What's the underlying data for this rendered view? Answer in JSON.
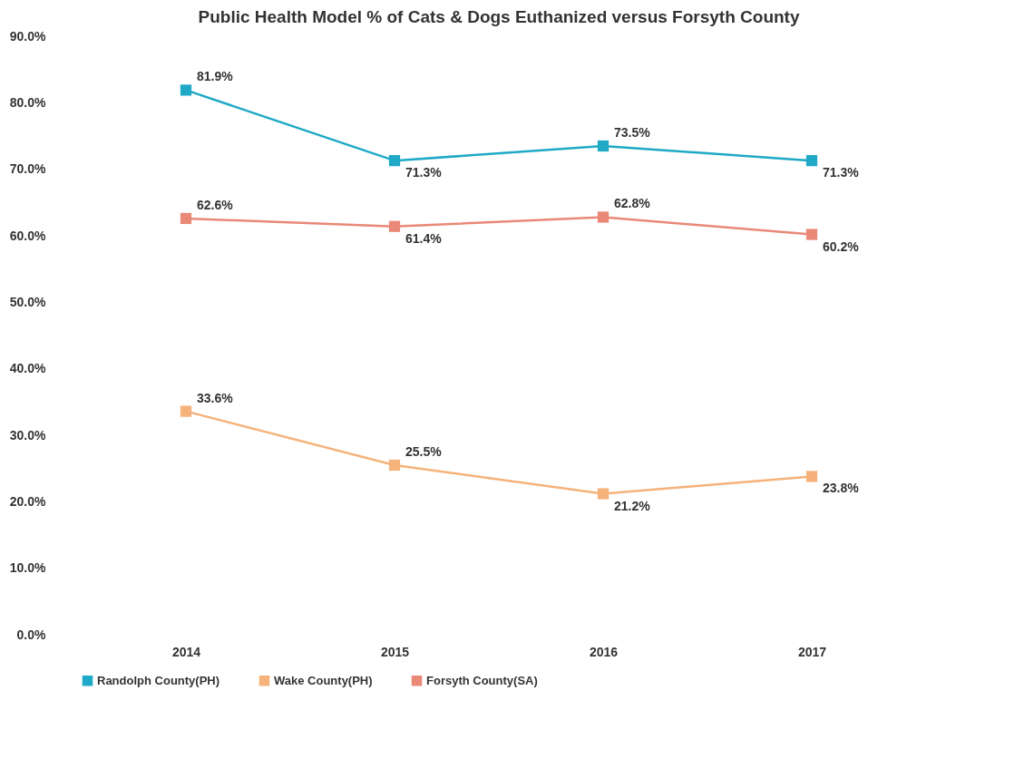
{
  "chart_data": {
    "type": "line",
    "title": "Public Health Model % of Cats & Dogs Euthanized versus Forsyth County",
    "categories": [
      "2014",
      "2015",
      "2016",
      "2017"
    ],
    "series": [
      {
        "name": "Randolph County(PH)",
        "color": "#1fa9c6",
        "values": [
          81.9,
          71.3,
          73.5,
          71.3
        ],
        "value_labels": [
          "81.9%",
          "71.3%",
          "73.5%",
          "71.3%"
        ]
      },
      {
        "name": "Wake County(PH)",
        "color": "#f5b27a",
        "values": [
          33.6,
          25.5,
          21.2,
          23.8
        ],
        "value_labels": [
          "33.6%",
          "25.5%",
          "21.2%",
          "23.8%"
        ]
      },
      {
        "name": "Forsyth County(SA)",
        "color": "#ea8878",
        "values": [
          62.6,
          61.4,
          62.8,
          60.2
        ],
        "value_labels": [
          "62.6%",
          "61.4%",
          "62.8%",
          "60.2%"
        ]
      }
    ],
    "ylim": [
      0,
      90
    ],
    "yticks": [
      {
        "value": 0,
        "label": "0.0%"
      },
      {
        "value": 10,
        "label": "10.0%"
      },
      {
        "value": 20,
        "label": "20.0%"
      },
      {
        "value": 30,
        "label": "30.0%"
      },
      {
        "value": 40,
        "label": "40.0%"
      },
      {
        "value": 50,
        "label": "50.0%"
      },
      {
        "value": 60,
        "label": "60.0%"
      },
      {
        "value": 70,
        "label": "70.0%"
      },
      {
        "value": 80,
        "label": "80.0%"
      },
      {
        "value": 90,
        "label": "90.0%"
      }
    ],
    "grid": false,
    "legend": "bottom",
    "marker": "square",
    "line_style": "solid"
  }
}
